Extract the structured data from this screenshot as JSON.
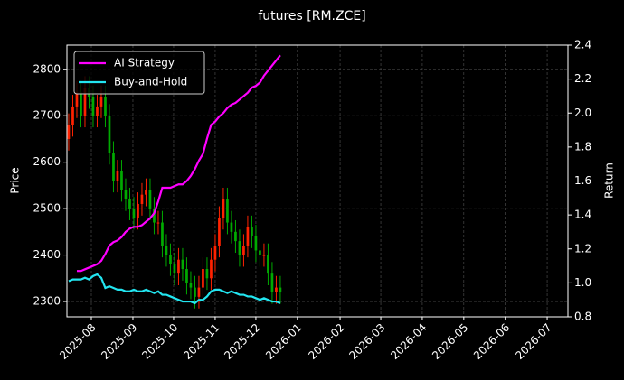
{
  "chart_data": {
    "type": "candlestick",
    "title": "futures [RM.ZCE]",
    "ylabel": "Price",
    "y2label": "Return",
    "open": [
      2650,
      2680,
      2720,
      2750,
      2700,
      2760,
      2740,
      2700,
      2720,
      2740,
      2700,
      2620,
      2560,
      2580,
      2540,
      2520,
      2500,
      2480,
      2510,
      2530,
      2540,
      2500,
      2470,
      2470,
      2420,
      2400,
      2380,
      2360,
      2390,
      2370,
      2340,
      2330,
      2310,
      2330,
      2370,
      2350,
      2390,
      2420,
      2480,
      2520,
      2470,
      2450,
      2430,
      2400,
      2420,
      2460,
      2440,
      2410,
      2400,
      2400,
      2360,
      2320,
      2330
    ],
    "high": [
      2705,
      2745,
      2775,
      2775,
      2785,
      2785,
      2765,
      2745,
      2765,
      2765,
      2725,
      2645,
      2605,
      2605,
      2565,
      2545,
      2525,
      2535,
      2555,
      2565,
      2565,
      2525,
      2495,
      2495,
      2445,
      2425,
      2405,
      2415,
      2415,
      2395,
      2365,
      2355,
      2355,
      2395,
      2395,
      2415,
      2445,
      2505,
      2545,
      2545,
      2495,
      2475,
      2455,
      2445,
      2485,
      2485,
      2465,
      2435,
      2425,
      2425,
      2385,
      2355,
      2355
    ],
    "low": [
      2625,
      2655,
      2695,
      2675,
      2675,
      2715,
      2675,
      2675,
      2695,
      2675,
      2595,
      2535,
      2535,
      2515,
      2495,
      2475,
      2455,
      2455,
      2485,
      2505,
      2475,
      2445,
      2445,
      2395,
      2375,
      2355,
      2335,
      2335,
      2345,
      2315,
      2305,
      2285,
      2285,
      2305,
      2325,
      2325,
      2365,
      2395,
      2455,
      2445,
      2425,
      2405,
      2375,
      2375,
      2395,
      2415,
      2385,
      2375,
      2375,
      2335,
      2295,
      2295,
      2295
    ],
    "close": [
      2680,
      2720,
      2750,
      2700,
      2760,
      2740,
      2700,
      2720,
      2740,
      2700,
      2620,
      2560,
      2580,
      2540,
      2520,
      2500,
      2480,
      2510,
      2530,
      2540,
      2500,
      2470,
      2470,
      2420,
      2400,
      2380,
      2360,
      2390,
      2370,
      2340,
      2330,
      2310,
      2330,
      2370,
      2350,
      2390,
      2420,
      2480,
      2520,
      2470,
      2450,
      2430,
      2400,
      2420,
      2460,
      2440,
      2410,
      2400,
      2400,
      2360,
      2320,
      2330,
      2320
    ],
    "up_color": "#ff2200",
    "down_color": "#00aa00",
    "series": [
      {
        "name": "AI Strategy",
        "color": "#ff00ff",
        "axis": "y2",
        "values": [
          null,
          null,
          1.07,
          1.07,
          1.08,
          1.09,
          1.1,
          1.11,
          1.13,
          1.17,
          1.22,
          1.24,
          1.25,
          1.27,
          1.3,
          1.32,
          1.33,
          1.33,
          1.34,
          1.36,
          1.38,
          1.41,
          1.48,
          1.56,
          1.56,
          1.56,
          1.57,
          1.58,
          1.58,
          1.6,
          1.63,
          1.67,
          1.72,
          1.76,
          1.85,
          1.93,
          1.95,
          1.98,
          2.0,
          2.03,
          2.05,
          2.06,
          2.08,
          2.1,
          2.12,
          2.15,
          2.16,
          2.18,
          2.22,
          2.25,
          2.28,
          2.31,
          2.34
        ]
      },
      {
        "name": "Buy-and-Hold",
        "color": "#22e5f0",
        "axis": "y2",
        "values": [
          1.01,
          1.02,
          1.02,
          1.02,
          1.03,
          1.02,
          1.04,
          1.05,
          1.03,
          0.97,
          0.98,
          0.97,
          0.96,
          0.96,
          0.95,
          0.95,
          0.96,
          0.95,
          0.95,
          0.96,
          0.95,
          0.94,
          0.95,
          0.93,
          0.93,
          0.92,
          0.91,
          0.9,
          0.89,
          0.89,
          0.89,
          0.88,
          0.9,
          0.9,
          0.92,
          0.95,
          0.96,
          0.96,
          0.95,
          0.94,
          0.95,
          0.94,
          0.93,
          0.93,
          0.92,
          0.92,
          0.91,
          0.9,
          0.91,
          0.9,
          0.89,
          0.89,
          0.88
        ]
      }
    ],
    "xlim": [
      -0.44,
      122.7
    ],
    "xticks": [
      {
        "value": 5.56,
        "label": "2025-08"
      },
      {
        "value": 15.78,
        "label": "2025-09"
      },
      {
        "value": 25.78,
        "label": "2025-10"
      },
      {
        "value": 36,
        "label": "2025-11"
      },
      {
        "value": 46,
        "label": "2025-12"
      },
      {
        "value": 56.2,
        "label": "2026-01"
      },
      {
        "value": 66.7,
        "label": "2026-02"
      },
      {
        "value": 76.7,
        "label": "2026-03"
      },
      {
        "value": 86.9,
        "label": "2026-04"
      },
      {
        "value": 97.1,
        "label": "2026-05"
      },
      {
        "value": 107.3,
        "label": "2026-06"
      },
      {
        "value": 117.6,
        "label": "2026-07"
      }
    ],
    "ylim": [
      2267,
      2852
    ],
    "yticks": [
      2300,
      2400,
      2500,
      2600,
      2700,
      2800
    ],
    "y2lim": [
      0.8,
      2.4
    ],
    "y2ticks": [
      0.8,
      {
        "value": 1,
        "label": "1.0"
      },
      1.2,
      1.4,
      1.6,
      1.8,
      {
        "value": 2,
        "label": "2.0"
      },
      2.2,
      2.4
    ],
    "grid": true,
    "legend": "upper left"
  }
}
